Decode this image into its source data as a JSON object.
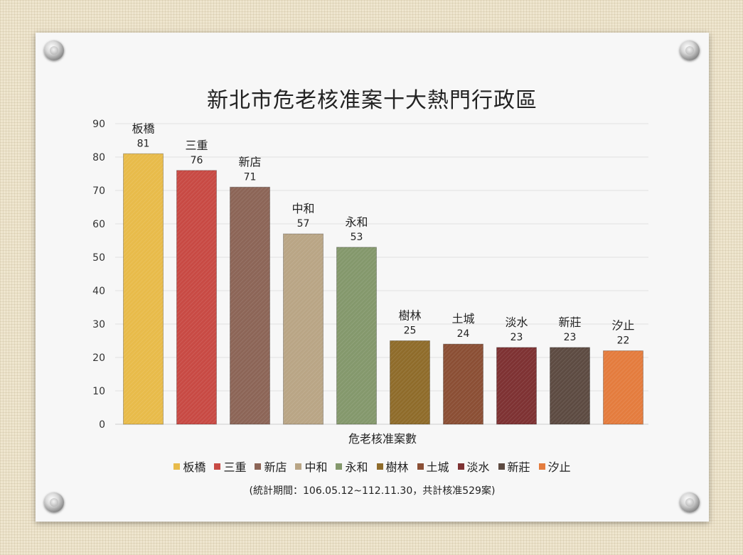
{
  "chart_data": {
    "type": "bar",
    "title": "新北市危老核准案十大熱門行政區",
    "xlabel": "危老核准案數",
    "ylabel": "",
    "ylim": [
      0,
      90
    ],
    "yticks": [
      0,
      10,
      20,
      30,
      40,
      50,
      60,
      70,
      80,
      90
    ],
    "grid": true,
    "legend_position": "bottom",
    "categories": [
      "板橋",
      "三重",
      "新店",
      "中和",
      "永和",
      "樹林",
      "土城",
      "淡水",
      "新莊",
      "汐止"
    ],
    "values": [
      81,
      76,
      71,
      57,
      53,
      25,
      24,
      23,
      23,
      22
    ],
    "colors": [
      "#e8bb4a",
      "#c84a44",
      "#8c6557",
      "#b9a585",
      "#84986c",
      "#8f6c2b",
      "#8b4f35",
      "#7e3233",
      "#5d4b42",
      "#e47c3e"
    ],
    "footnote": "(統計期間：106.05.12~112.11.30，共計核准529案)"
  }
}
